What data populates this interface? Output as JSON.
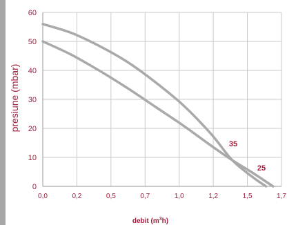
{
  "chart_data": {
    "type": "line",
    "xlabel_main": "debit (m",
    "xlabel_sup": "3",
    "xlabel_end": "h)",
    "ylabel": "presiune  (mbar)",
    "xlim": [
      0,
      1.7
    ],
    "ylim": [
      0,
      60
    ],
    "x_ticks": [
      "0,0",
      "0,2",
      "0,5",
      "0,7",
      "1,0",
      "1,2",
      "1,5",
      "1,7"
    ],
    "y_ticks": [
      "0",
      "10",
      "20",
      "30",
      "40",
      "50",
      "60"
    ],
    "grid": true,
    "series": [
      {
        "name": "35",
        "x": [
          0.0,
          0.2,
          0.4,
          0.6,
          0.8,
          1.0,
          1.2,
          1.35,
          1.5,
          1.59
        ],
        "y": [
          56,
          53,
          48.5,
          43,
          36,
          28,
          18,
          9,
          3,
          0
        ]
      },
      {
        "name": "25",
        "x": [
          0.0,
          0.2,
          0.4,
          0.6,
          0.8,
          1.0,
          1.2,
          1.35,
          1.5,
          1.64
        ],
        "y": [
          50,
          45.5,
          40,
          34,
          27.5,
          21,
          14,
          9,
          4.5,
          0
        ]
      }
    ],
    "colors": {
      "curve": "#a9a9a9",
      "text": "#a01e3c",
      "grid": "#c8c8c8"
    }
  }
}
